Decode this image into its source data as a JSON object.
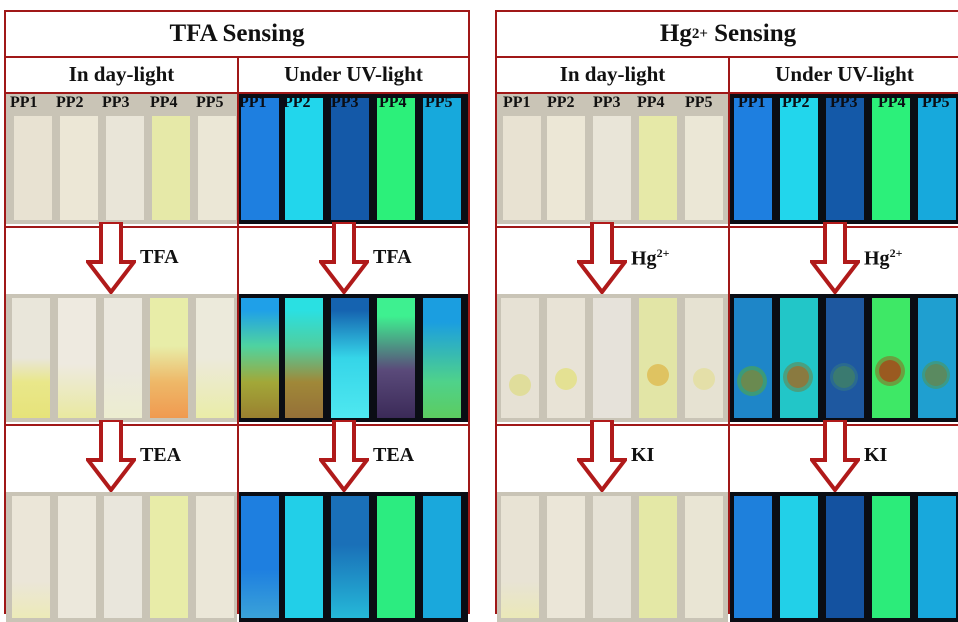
{
  "panels": [
    {
      "title_main": "TFA Sensing",
      "title_sup": "",
      "title_rest": "",
      "col_a": "In day-light",
      "col_b": "Under UV-light",
      "reagent1": "TFA",
      "reagent1_sup": "",
      "reagent2": "TEA"
    },
    {
      "title_main": "Hg",
      "title_sup": "2+",
      "title_rest": " Sensing",
      "col_a": "In day-light",
      "col_b": "Under UV-light",
      "reagent1": "Hg",
      "reagent1_sup": "2+",
      "reagent2": "KI"
    }
  ],
  "strip_labels": [
    "PP1",
    "PP2",
    "PP3",
    "PP4",
    "PP5"
  ],
  "colors": {
    "border": "#a01818",
    "day_strips": [
      "#e8e2d2",
      "#ece7d6",
      "#e9e5d8",
      "#e6e9a8",
      "#ebe7d6"
    ],
    "uv_strips": [
      "#1e7fe0",
      "#22d6ec",
      "#1459a8",
      "#2cf07a",
      "#17a9dc"
    ]
  }
}
